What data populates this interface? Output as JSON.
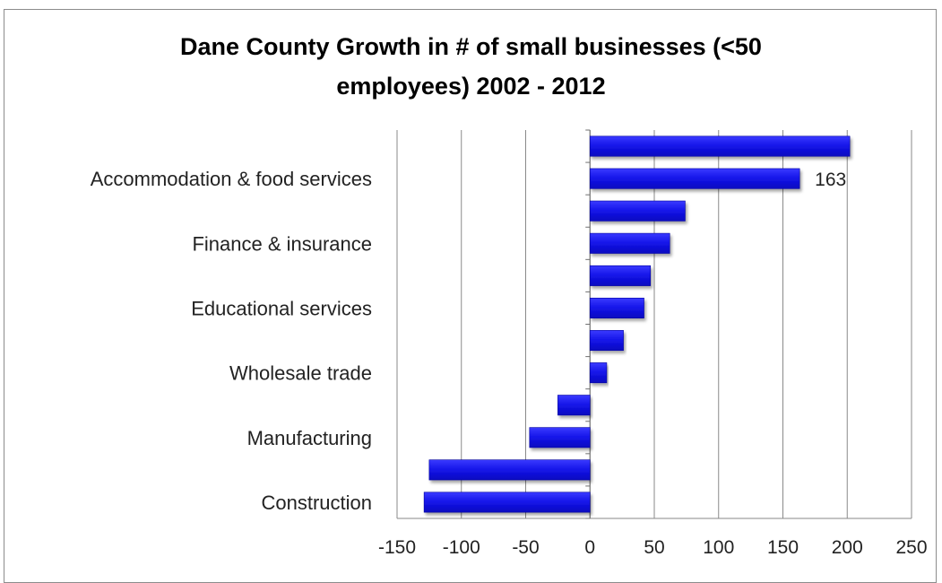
{
  "chart_data": {
    "type": "bar",
    "orientation": "horizontal",
    "title_lines": [
      "Dane County Growth in # of small businesses (<50",
      "employees) 2002 - 2012"
    ],
    "xlabel": "",
    "ylabel": "",
    "xlim": [
      -150,
      250
    ],
    "x_ticks": [
      -150,
      -100,
      -50,
      0,
      50,
      100,
      150,
      200,
      250
    ],
    "category_labels": [
      "Accommodation & food services",
      "Finance & insurance",
      "Educational services",
      "Wholesale trade",
      "Manufacturing",
      "Construction"
    ],
    "bar_count": 12,
    "label_every": 2,
    "label_first_bar": 1,
    "values": [
      202,
      163,
      74,
      62,
      47,
      42,
      26,
      13,
      -25,
      -47,
      -125,
      -129
    ],
    "data_labels": [
      {
        "bar": 1,
        "text": "163"
      }
    ],
    "bar_color": "#1414e8",
    "grid_color": "#8a8a8a",
    "grid": true,
    "legend": "none"
  }
}
